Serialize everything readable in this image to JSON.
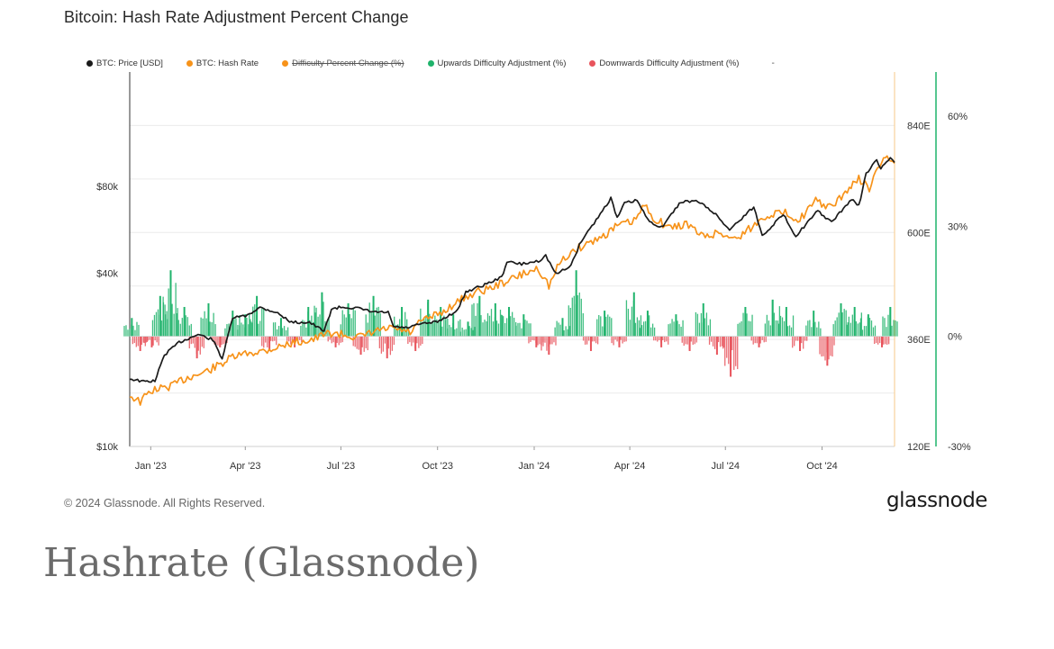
{
  "title": "Bitcoin: Hash Rate Adjustment Percent Change",
  "legend": [
    {
      "label": "BTC: Price [USD]",
      "color": "#1a1a1a",
      "struck": false
    },
    {
      "label": "BTC: Hash Rate",
      "color": "#f7931a",
      "struck": false
    },
    {
      "label": "Difficulty Percent Change (%)",
      "color": "#f7931a",
      "struck": true
    },
    {
      "label": "Upwards Difficulty Adjustment (%)",
      "color": "#1fb36b",
      "struck": false
    },
    {
      "label": "Downwards Difficulty Adjustment (%)",
      "color": "#e8545c",
      "struck": false
    }
  ],
  "legend_extra": "-",
  "footer": {
    "copyright": "© 2024 Glassnode. All Rights Reserved.",
    "brand": "glassnode"
  },
  "caption": "Hashrate (Glassnode)",
  "chart_data": {
    "type": "line",
    "x_ticks": [
      "Jan '23",
      "Apr '23",
      "Jul '23",
      "Oct '23",
      "Jan '24",
      "Apr '24",
      "Jul '24",
      "Oct '24"
    ],
    "x_tick_dates": [
      "2023-01-01",
      "2023-04-01",
      "2023-07-01",
      "2023-10-01",
      "2024-01-01",
      "2024-04-01",
      "2024-07-01",
      "2024-10-01"
    ],
    "x_range": [
      "2022-12-12",
      "2024-12-09"
    ],
    "price_axis": {
      "ticks": [
        "$10k",
        "$40k",
        "$80k"
      ],
      "tick_values": [
        10000,
        40000,
        80000
      ],
      "scale": "log",
      "range": [
        10000,
        200000
      ]
    },
    "hashrate_axis": {
      "ticks": [
        "120E",
        "360E",
        "600E",
        "840E"
      ],
      "tick_values": [
        120,
        360,
        600,
        840
      ],
      "range": [
        120,
        960
      ]
    },
    "difficulty_axis": {
      "ticks": [
        "-30%",
        "0%",
        "30%",
        "60%"
      ],
      "tick_values": [
        -30,
        0,
        30,
        60
      ],
      "range": [
        -30,
        72
      ]
    },
    "colors": {
      "price": "#1a1a1a",
      "hashrate": "#f7931a",
      "up": "#1fb36b",
      "down": "#e8545c"
    },
    "series": [
      {
        "name": "BTC: Price [USD]",
        "axis": "price",
        "points": [
          [
            "2022-12-12",
            17200
          ],
          [
            "2022-12-25",
            16800
          ],
          [
            "2023-01-05",
            16900
          ],
          [
            "2023-01-14",
            20800
          ],
          [
            "2023-01-28",
            23000
          ],
          [
            "2023-02-15",
            24500
          ],
          [
            "2023-03-01",
            23500
          ],
          [
            "2023-03-10",
            20200
          ],
          [
            "2023-03-20",
            28000
          ],
          [
            "2023-04-01",
            28400
          ],
          [
            "2023-04-15",
            30400
          ],
          [
            "2023-04-30",
            29300
          ],
          [
            "2023-05-15",
            27000
          ],
          [
            "2023-06-01",
            27000
          ],
          [
            "2023-06-15",
            25100
          ],
          [
            "2023-06-22",
            30000
          ],
          [
            "2023-07-01",
            30500
          ],
          [
            "2023-07-15",
            30300
          ],
          [
            "2023-08-01",
            29300
          ],
          [
            "2023-08-15",
            29200
          ],
          [
            "2023-08-20",
            26100
          ],
          [
            "2023-09-01",
            25800
          ],
          [
            "2023-09-15",
            26600
          ],
          [
            "2023-10-01",
            27100
          ],
          [
            "2023-10-20",
            29700
          ],
          [
            "2023-10-28",
            34500
          ],
          [
            "2023-11-15",
            36500
          ],
          [
            "2023-12-01",
            38700
          ],
          [
            "2023-12-06",
            43800
          ],
          [
            "2023-12-20",
            43000
          ],
          [
            "2024-01-05",
            44100
          ],
          [
            "2024-01-12",
            46000
          ],
          [
            "2024-01-22",
            39600
          ],
          [
            "2024-02-05",
            42600
          ],
          [
            "2024-02-15",
            52000
          ],
          [
            "2024-02-29",
            61200
          ],
          [
            "2024-03-14",
            73000
          ],
          [
            "2024-03-20",
            62000
          ],
          [
            "2024-03-27",
            70000
          ],
          [
            "2024-04-08",
            71600
          ],
          [
            "2024-04-18",
            61300
          ],
          [
            "2024-05-01",
            57600
          ],
          [
            "2024-05-20",
            71000
          ],
          [
            "2024-06-05",
            71000
          ],
          [
            "2024-06-20",
            65000
          ],
          [
            "2024-07-05",
            56600
          ],
          [
            "2024-07-28",
            68000
          ],
          [
            "2024-08-05",
            54000
          ],
          [
            "2024-08-25",
            64000
          ],
          [
            "2024-09-06",
            53900
          ],
          [
            "2024-09-27",
            65800
          ],
          [
            "2024-10-10",
            60000
          ],
          [
            "2024-10-29",
            72300
          ],
          [
            "2024-11-05",
            68500
          ],
          [
            "2024-11-12",
            89000
          ],
          [
            "2024-11-22",
            98500
          ],
          [
            "2024-11-26",
            92000
          ],
          [
            "2024-12-05",
            101000
          ],
          [
            "2024-12-09",
            97000
          ]
        ]
      },
      {
        "name": "BTC: Hash Rate",
        "axis": "hashrate",
        "points": [
          [
            "2022-12-12",
            235
          ],
          [
            "2022-12-22",
            220
          ],
          [
            "2023-01-01",
            245
          ],
          [
            "2023-01-20",
            255
          ],
          [
            "2023-02-05",
            275
          ],
          [
            "2023-02-20",
            285
          ],
          [
            "2023-03-05",
            300
          ],
          [
            "2023-03-20",
            320
          ],
          [
            "2023-04-05",
            330
          ],
          [
            "2023-04-20",
            335
          ],
          [
            "2023-05-05",
            345
          ],
          [
            "2023-05-20",
            355
          ],
          [
            "2023-06-05",
            360
          ],
          [
            "2023-06-20",
            375
          ],
          [
            "2023-07-05",
            370
          ],
          [
            "2023-07-20",
            365
          ],
          [
            "2023-08-05",
            380
          ],
          [
            "2023-08-20",
            385
          ],
          [
            "2023-09-05",
            375
          ],
          [
            "2023-09-15",
            400
          ],
          [
            "2023-10-05",
            420
          ],
          [
            "2023-10-20",
            445
          ],
          [
            "2023-11-05",
            465
          ],
          [
            "2023-11-20",
            475
          ],
          [
            "2023-12-05",
            490
          ],
          [
            "2023-12-20",
            505
          ],
          [
            "2024-01-05",
            520
          ],
          [
            "2024-01-15",
            480
          ],
          [
            "2024-01-25",
            530
          ],
          [
            "2024-02-05",
            555
          ],
          [
            "2024-02-20",
            575
          ],
          [
            "2024-03-05",
            590
          ],
          [
            "2024-03-20",
            615
          ],
          [
            "2024-04-05",
            625
          ],
          [
            "2024-04-15",
            660
          ],
          [
            "2024-04-25",
            630
          ],
          [
            "2024-05-10",
            610
          ],
          [
            "2024-05-25",
            620
          ],
          [
            "2024-06-10",
            590
          ],
          [
            "2024-06-25",
            600
          ],
          [
            "2024-07-10",
            585
          ],
          [
            "2024-07-25",
            610
          ],
          [
            "2024-08-10",
            640
          ],
          [
            "2024-08-25",
            645
          ],
          [
            "2024-09-10",
            630
          ],
          [
            "2024-09-25",
            670
          ],
          [
            "2024-10-10",
            655
          ],
          [
            "2024-10-25",
            695
          ],
          [
            "2024-11-05",
            720
          ],
          [
            "2024-11-15",
            700
          ],
          [
            "2024-11-25",
            750
          ],
          [
            "2024-12-02",
            770
          ],
          [
            "2024-12-09",
            755
          ]
        ]
      }
    ],
    "difficulty_adjustments": [
      [
        "2022-12-14",
        5
      ],
      [
        "2022-12-22",
        -4
      ],
      [
        "2023-01-02",
        -3
      ],
      [
        "2023-01-10",
        11
      ],
      [
        "2023-01-20",
        18
      ],
      [
        "2023-02-02",
        8
      ],
      [
        "2023-02-14",
        -6
      ],
      [
        "2023-02-25",
        9
      ],
      [
        "2023-03-08",
        -3
      ],
      [
        "2023-03-20",
        7
      ],
      [
        "2023-04-01",
        6
      ],
      [
        "2023-04-12",
        11
      ],
      [
        "2023-04-24",
        -4
      ],
      [
        "2023-05-05",
        5
      ],
      [
        "2023-05-18",
        -3
      ],
      [
        "2023-05-31",
        8
      ],
      [
        "2023-06-13",
        12
      ],
      [
        "2023-06-26",
        -3
      ],
      [
        "2023-07-08",
        9
      ],
      [
        "2023-07-20",
        -5
      ],
      [
        "2023-08-01",
        11
      ],
      [
        "2023-08-14",
        -6
      ],
      [
        "2023-08-28",
        8
      ],
      [
        "2023-09-10",
        -4
      ],
      [
        "2023-09-22",
        10
      ],
      [
        "2023-10-04",
        8
      ],
      [
        "2023-10-16",
        6
      ],
      [
        "2023-10-30",
        4
      ],
      [
        "2023-11-10",
        11
      ],
      [
        "2023-11-25",
        9
      ],
      [
        "2023-12-08",
        8
      ],
      [
        "2023-12-22",
        6
      ],
      [
        "2024-01-03",
        -3
      ],
      [
        "2024-01-15",
        -5
      ],
      [
        "2024-01-28",
        5
      ],
      [
        "2024-02-10",
        18
      ],
      [
        "2024-02-24",
        -4
      ],
      [
        "2024-03-08",
        7
      ],
      [
        "2024-03-22",
        -3
      ],
      [
        "2024-04-05",
        12
      ],
      [
        "2024-04-18",
        7
      ],
      [
        "2024-05-01",
        -3
      ],
      [
        "2024-05-15",
        6
      ],
      [
        "2024-05-28",
        -4
      ],
      [
        "2024-06-10",
        9
      ],
      [
        "2024-06-23",
        -5
      ],
      [
        "2024-07-06",
        -11
      ],
      [
        "2024-07-20",
        8
      ],
      [
        "2024-08-02",
        -3
      ],
      [
        "2024-08-15",
        10
      ],
      [
        "2024-08-28",
        8
      ],
      [
        "2024-09-10",
        -4
      ],
      [
        "2024-09-23",
        7
      ],
      [
        "2024-10-06",
        -8
      ],
      [
        "2024-10-19",
        9
      ],
      [
        "2024-11-01",
        8
      ],
      [
        "2024-11-14",
        6
      ],
      [
        "2024-11-27",
        -3
      ],
      [
        "2024-12-05",
        8
      ]
    ]
  }
}
